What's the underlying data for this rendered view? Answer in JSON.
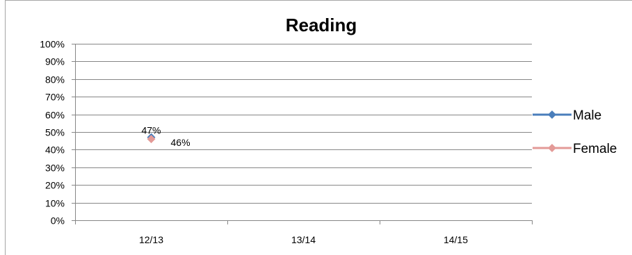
{
  "chart_data": {
    "type": "line",
    "title": "Reading",
    "categories": [
      "12/13",
      "13/14",
      "14/15"
    ],
    "ylim": [
      0,
      100
    ],
    "y_ticks": [
      "0%",
      "10%",
      "20%",
      "30%",
      "40%",
      "50%",
      "60%",
      "70%",
      "80%",
      "90%",
      "100%"
    ],
    "grid": true,
    "legend_position": "right",
    "series": [
      {
        "name": "Male",
        "color": "#4a7ebb",
        "marker": "diamond",
        "values": [
          47,
          null,
          null
        ],
        "labels": [
          "47%",
          null,
          null
        ]
      },
      {
        "name": "Female",
        "color": "#e39a97",
        "marker": "diamond",
        "values": [
          46,
          null,
          null
        ],
        "labels": [
          "46%",
          null,
          null
        ]
      }
    ]
  }
}
